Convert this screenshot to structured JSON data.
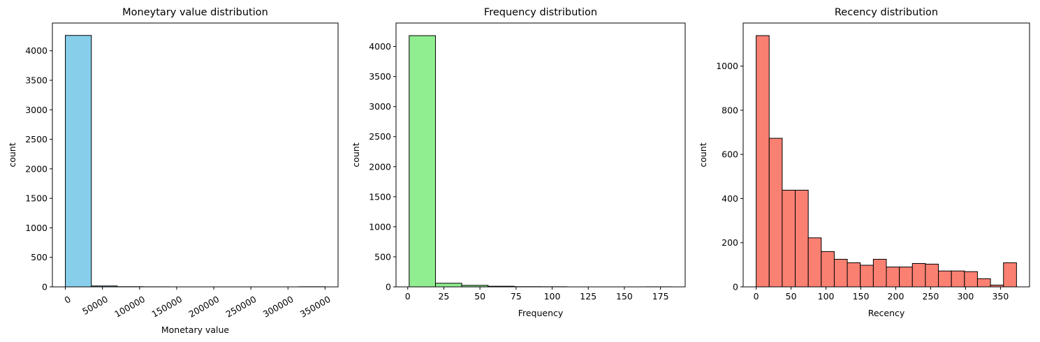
{
  "chart_data": [
    {
      "type": "bar",
      "title": "Moneytary value distribution",
      "xlabel": "Monetary value",
      "ylabel": "count",
      "color": "#87ceeb",
      "edge_color": "#000000",
      "bin_edges": [
        0,
        35000,
        70000,
        105000,
        140000,
        175000,
        210000,
        245000,
        280000,
        315000,
        350000
      ],
      "values": [
        4260,
        15,
        3,
        1,
        0,
        0,
        0,
        0,
        0,
        2
      ],
      "xlim": [
        -17500,
        367500
      ],
      "ylim": [
        0,
        4470
      ],
      "xticks": [
        0,
        50000,
        100000,
        150000,
        200000,
        250000,
        300000,
        350000
      ],
      "xtick_labels": [
        "0",
        "50000",
        "100000",
        "150000",
        "200000",
        "250000",
        "300000",
        "350000"
      ],
      "xtick_rotation": 30,
      "yticks": [
        0,
        500,
        1000,
        1500,
        2000,
        2500,
        3000,
        3500,
        4000
      ],
      "ytick_labels": [
        "0",
        "500",
        "1000",
        "1500",
        "2000",
        "2500",
        "3000",
        "3500",
        "4000"
      ],
      "grid": false
    },
    {
      "type": "bar",
      "title": "Frequency distribution",
      "xlabel": "Frequency",
      "ylabel": "count",
      "color": "#90ee90",
      "edge_color": "#000000",
      "bin_edges": [
        1,
        19.2,
        37.4,
        55.6,
        73.8,
        92,
        110.2,
        128.4,
        146.6,
        164.8,
        183
      ],
      "values": [
        4180,
        60,
        25,
        10,
        3,
        2,
        0,
        0,
        0,
        1
      ],
      "xlim": [
        -8.1,
        192.1
      ],
      "ylim": [
        0,
        4390
      ],
      "xticks": [
        0,
        25,
        50,
        75,
        100,
        125,
        150,
        175
      ],
      "xtick_labels": [
        "0",
        "25",
        "50",
        "75",
        "100",
        "125",
        "150",
        "175"
      ],
      "xtick_rotation": 0,
      "yticks": [
        0,
        500,
        1000,
        1500,
        2000,
        2500,
        3000,
        3500,
        4000
      ],
      "ytick_labels": [
        "0",
        "500",
        "1000",
        "1500",
        "2000",
        "2500",
        "3000",
        "3500",
        "4000"
      ],
      "grid": false
    },
    {
      "type": "bar",
      "title": "Recency distribution",
      "xlabel": "Recency",
      "ylabel": "count",
      "color": "#fa8072",
      "edge_color": "#000000",
      "bin_edges": [
        0,
        18.65,
        37.3,
        55.95,
        74.6,
        93.25,
        111.9,
        130.55,
        149.2,
        167.85,
        186.5,
        205.15,
        223.8,
        242.45,
        261.1,
        279.75,
        298.4,
        317.05,
        335.7,
        354.35,
        373
      ],
      "values": [
        1138,
        673,
        438,
        438,
        222,
        160,
        125,
        109,
        98,
        125,
        90,
        90,
        106,
        103,
        72,
        72,
        69,
        37,
        8,
        109
      ],
      "xlim": [
        -18.65,
        391.65
      ],
      "ylim": [
        0,
        1195
      ],
      "xticks": [
        0,
        50,
        100,
        150,
        200,
        250,
        300,
        350
      ],
      "xtick_labels": [
        "0",
        "50",
        "100",
        "150",
        "200",
        "250",
        "300",
        "350"
      ],
      "xtick_rotation": 0,
      "yticks": [
        0,
        200,
        400,
        600,
        800,
        1000
      ],
      "ytick_labels": [
        "0",
        "200",
        "400",
        "600",
        "800",
        "1000"
      ],
      "grid": false
    }
  ]
}
